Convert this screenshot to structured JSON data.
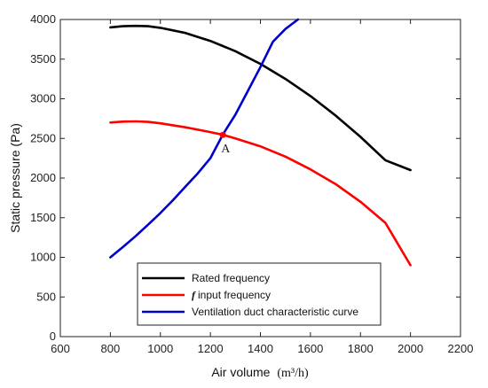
{
  "chart_data": {
    "type": "line",
    "title": "",
    "xlabel": "Air volume",
    "xlabel_unit": "(m³/h)",
    "ylabel": "Static pressure (Pa)",
    "xlim": [
      600,
      2200
    ],
    "ylim": [
      0,
      4000
    ],
    "xticks": [
      600,
      800,
      1000,
      1200,
      1400,
      1600,
      1800,
      2000,
      2200
    ],
    "yticks": [
      0,
      500,
      1000,
      1500,
      2000,
      2500,
      3000,
      3500,
      4000
    ],
    "grid": false,
    "legend_position": "bottom-center",
    "series": [
      {
        "name": "Rated frequency",
        "color": "#000000",
        "x": [
          800,
          850,
          900,
          950,
          1000,
          1100,
          1200,
          1300,
          1400,
          1500,
          1600,
          1700,
          1800,
          1900,
          2000
        ],
        "y": [
          3900,
          3915,
          3920,
          3915,
          3895,
          3830,
          3730,
          3600,
          3440,
          3250,
          3035,
          2790,
          2520,
          2225,
          2100
        ]
      },
      {
        "name": "input frequency",
        "name_prefix": "f",
        "color": "#ff0000",
        "x": [
          800,
          850,
          900,
          950,
          1000,
          1100,
          1200,
          1250,
          1300,
          1400,
          1500,
          1600,
          1700,
          1800,
          1900,
          2000
        ],
        "y": [
          2700,
          2712,
          2715,
          2708,
          2690,
          2640,
          2580,
          2545,
          2500,
          2400,
          2270,
          2110,
          1925,
          1700,
          1435,
          900
        ]
      },
      {
        "name": "Ventilation duct characteristic curve",
        "color": "#0000cc",
        "x": [
          800,
          850,
          900,
          950,
          1000,
          1050,
          1100,
          1150,
          1200,
          1250,
          1300,
          1350,
          1400,
          1450,
          1500,
          1550
        ],
        "y": [
          1000,
          1130,
          1265,
          1410,
          1560,
          1720,
          1890,
          2060,
          2250,
          2550,
          2800,
          3100,
          3400,
          3720,
          3880,
          4000
        ]
      }
    ],
    "annotations": [
      {
        "text": "A",
        "x": 1250,
        "y": 2545,
        "marker": "point",
        "color": "#ff0000"
      }
    ]
  }
}
